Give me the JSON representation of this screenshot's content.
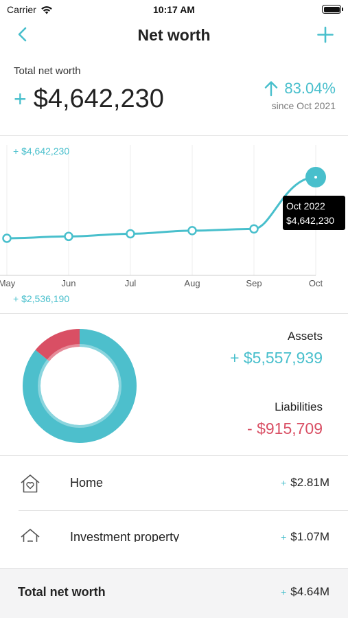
{
  "status_bar": {
    "carrier": "Carrier",
    "time": "10:17 AM"
  },
  "nav": {
    "title": "Net worth",
    "back_icon": "chevron-left-icon",
    "add_icon": "plus-icon"
  },
  "summary": {
    "label": "Total net worth",
    "sign": "+",
    "amount": "$4,642,230",
    "change_percent": "83.04%",
    "change_since": "since Oct 2021",
    "change_direction": "up"
  },
  "chart": {
    "max_label": "+ $4,642,230",
    "min_label": "+ $2,536,190",
    "tooltip_date": "Oct 2022",
    "tooltip_value": "$4,642,230"
  },
  "chart_data": {
    "type": "line",
    "categories": [
      "May",
      "Jun",
      "Jul",
      "Aug",
      "Sep",
      "Oct"
    ],
    "values": [
      2536190,
      2600000,
      2690000,
      2800000,
      2860000,
      4642230
    ],
    "ylim": [
      2536190,
      4642230
    ],
    "grid": true,
    "highlight_index": 5
  },
  "breakdown": {
    "assets_label": "Assets",
    "assets_value": "+ $5,557,939",
    "liabilities_label": "Liabilities",
    "liabilities_value": "- $915,709",
    "assets_amount": 5557939,
    "liabilities_amount": 915709,
    "assets_color": "#4dbfcc",
    "liabilities_color": "#d94f64"
  },
  "list": [
    {
      "name": "Home",
      "sign": "+",
      "amount": "$2.81M",
      "icon": "home-heart-icon"
    },
    {
      "name": "Investment property",
      "sign": "+",
      "amount": "$1.07M",
      "icon": "house-icon"
    }
  ],
  "footer": {
    "label": "Total net worth",
    "sign": "+",
    "amount": "$4.64M"
  },
  "colors": {
    "accent": "#48bfcc",
    "negative": "#d94f64",
    "tooltip_bg": "#000000"
  }
}
